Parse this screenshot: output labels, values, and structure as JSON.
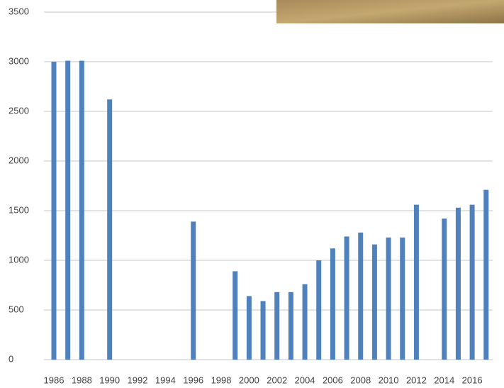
{
  "chart_data": {
    "type": "bar",
    "categories": [
      "1986",
      null,
      "1988",
      null,
      "1990",
      null,
      "1992",
      null,
      "1994",
      null,
      "1996",
      null,
      "1998",
      null,
      "2000",
      null,
      "2002",
      null,
      "2004",
      null,
      "2006",
      null,
      "2008",
      null,
      "2010",
      null,
      "2012",
      null,
      "2014",
      null,
      "2016",
      null
    ],
    "values": [
      3000,
      3010,
      3010,
      null,
      2620,
      null,
      null,
      null,
      null,
      null,
      1390,
      null,
      null,
      890,
      640,
      590,
      680,
      680,
      760,
      1000,
      1120,
      1240,
      1280,
      1160,
      1230,
      1230,
      1560,
      null,
      1420,
      1530,
      1560,
      1710
    ],
    "color": "#4f81bd",
    "ylim": [
      0,
      3500
    ],
    "yticks": [
      0,
      500,
      1000,
      1500,
      2000,
      2500,
      3000,
      3500
    ],
    "grid": true
  }
}
